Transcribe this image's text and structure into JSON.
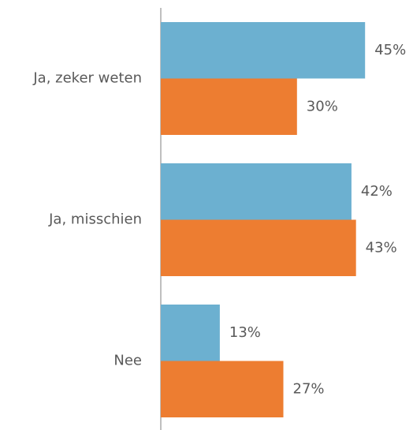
{
  "chart_data": {
    "type": "bar",
    "orientation": "horizontal",
    "categories": [
      "Ja, zeker weten",
      "Ja, misschien",
      "Nee"
    ],
    "series": [
      {
        "color": "#6cb0d0",
        "values": [
          45,
          42,
          13
        ],
        "value_labels": [
          "45%",
          "42%",
          "13%"
        ]
      },
      {
        "color": "#ed7d31",
        "values": [
          30,
          43,
          27
        ],
        "value_labels": [
          "30%",
          "43%",
          "27%"
        ]
      }
    ],
    "xlim": [
      0,
      50
    ]
  }
}
